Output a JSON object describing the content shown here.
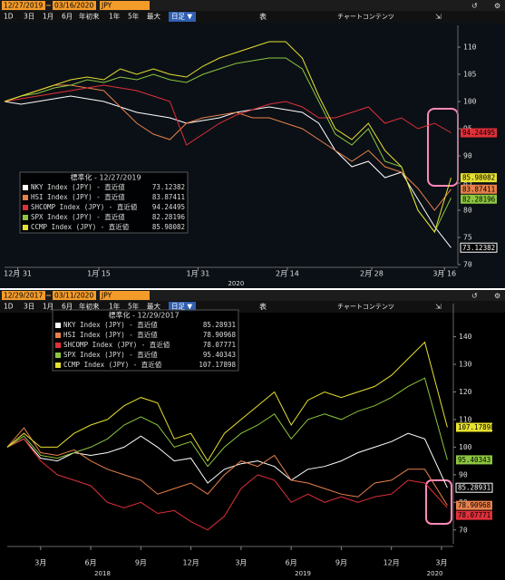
{
  "panels": [
    {
      "start": "12/27/2019",
      "end": "03/16/2020",
      "currency": "JPY"
    },
    {
      "start": "12/29/2017",
      "end": "03/11/2020",
      "currency": "JPY"
    }
  ],
  "buttons": [
    "1D",
    "3日",
    "1月",
    "6月",
    "年初来",
    "1年",
    "5年",
    "最大"
  ],
  "frequency": "日足 ▼",
  "table": "表",
  "content": "チャートコンテンツ",
  "chart_data": [
    {
      "type": "line",
      "legend_title": "標準化 - 12/27/2019",
      "ylim": [
        70,
        114
      ],
      "yticks": [
        70,
        75,
        80,
        85,
        90,
        95,
        100,
        105,
        110
      ],
      "xlim": [
        0,
        27.3
      ],
      "xticks": [
        {
          "value": 0.8,
          "label": "12月 31"
        },
        {
          "value": 5.7,
          "label": "1月 15"
        },
        {
          "value": 11.7,
          "label": "1月 31"
        },
        {
          "value": 17.1,
          "label": "2月 14"
        },
        {
          "value": 22.2,
          "label": "2月 28"
        },
        {
          "value": 26.6,
          "label": "3月 16"
        }
      ],
      "year_labels": [
        {
          "value": 14,
          "label": "2020"
        }
      ],
      "series": [
        {
          "name": "NKY Index (JPY) - 直近値",
          "color": "#ffffff",
          "values": [
            100,
            99.5,
            100,
            100.5,
            101,
            100.5,
            100,
            99,
            98,
            97.5,
            97,
            96,
            96.5,
            97,
            98,
            98.5,
            99,
            98.5,
            98,
            96,
            91,
            88,
            89,
            86,
            87,
            82,
            77,
            73.12382
          ]
        },
        {
          "name": "HSI Index (JPY) - 直近値",
          "color": "#e8804a",
          "values": [
            100,
            101,
            102,
            103,
            103,
            102.5,
            102,
            99,
            96,
            94,
            93,
            96,
            97,
            97.5,
            98,
            97,
            97,
            96,
            95,
            93,
            91,
            89,
            91,
            88,
            87,
            84,
            80,
            83.87411
          ]
        },
        {
          "name": "SHCOMP Index (JPY) - 直近値",
          "color": "#e0303a",
          "values": [
            100,
            100.5,
            101,
            101.5,
            102,
            102.5,
            103,
            102.5,
            102,
            101,
            100,
            92,
            94,
            96,
            97.5,
            98.5,
            99.5,
            100,
            99,
            97,
            97,
            98,
            99,
            96,
            97,
            95,
            96,
            94.24495
          ]
        },
        {
          "name": "SPX Index (JPY) - 直近値",
          "color": "#8cc63f",
          "values": [
            100,
            101,
            101.5,
            102.5,
            103,
            104,
            103.5,
            104.5,
            104,
            105,
            104,
            103.5,
            105,
            106,
            107,
            107.5,
            108,
            108,
            106,
            100,
            94,
            92,
            95,
            89,
            88,
            80,
            76,
            82.28196
          ]
        },
        {
          "name": "CCMP Index (JPY) - 直近値",
          "color": "#e6e030",
          "values": [
            100,
            101,
            102,
            103,
            104,
            104.5,
            104,
            106,
            105,
            106,
            105,
            104.5,
            106.5,
            108,
            109,
            110,
            111,
            111,
            108,
            101,
            95,
            93,
            96,
            91,
            88,
            80,
            76,
            85.98082
          ]
        }
      ]
    },
    {
      "type": "line",
      "legend_title": "標準化 - 12/29/2017",
      "ylim": [
        65,
        152
      ],
      "yticks": [
        70,
        80,
        90,
        100,
        110,
        120,
        130,
        140
      ],
      "xlim": [
        0,
        26.6
      ],
      "xticks": [
        {
          "value": 2,
          "label": "3月"
        },
        {
          "value": 5,
          "label": "6月"
        },
        {
          "value": 8,
          "label": "9月"
        },
        {
          "value": 11,
          "label": "12月"
        },
        {
          "value": 14,
          "label": "3月"
        },
        {
          "value": 17,
          "label": "6月"
        },
        {
          "value": 20,
          "label": "9月"
        },
        {
          "value": 23,
          "label": "12月"
        },
        {
          "value": 26,
          "label": "3月"
        }
      ],
      "year_labels": [
        {
          "value": 5.7,
          "label": "2018"
        },
        {
          "value": 17.7,
          "label": "2019"
        },
        {
          "value": 25.6,
          "label": "2020"
        }
      ],
      "x": [
        0,
        1,
        2,
        3,
        4,
        5,
        6,
        7,
        8,
        9,
        10,
        11,
        12,
        13,
        14,
        15,
        16,
        17,
        18,
        19,
        20,
        21,
        22,
        23,
        24,
        25,
        26.35
      ],
      "series": [
        {
          "name": "NKY Index (JPY) - 直近値",
          "color": "#ffffff",
          "values": [
            100,
            103,
            96,
            95,
            98,
            97,
            98,
            100,
            104,
            100,
            95,
            96,
            87,
            92,
            94,
            95,
            93,
            88,
            92,
            93,
            95,
            98,
            100,
            102,
            105,
            103,
            85.28931
          ]
        },
        {
          "name": "HSI Index (JPY) - 直近値",
          "color": "#e8804a",
          "values": [
            100,
            107,
            98,
            97,
            99,
            95,
            92,
            90,
            88,
            83,
            85,
            87,
            83,
            90,
            95,
            93,
            97,
            88,
            87,
            85,
            83,
            82,
            87,
            88,
            92,
            92,
            78.90968
          ]
        },
        {
          "name": "SHCOMP Index (JPY) - 直近値",
          "color": "#e0303a",
          "values": [
            100,
            103,
            95,
            90,
            88,
            86,
            80,
            78,
            80,
            76,
            77,
            73,
            70,
            75,
            85,
            90,
            88,
            80,
            83,
            80,
            82,
            80,
            82,
            83,
            88,
            87,
            78.07771
          ]
        },
        {
          "name": "SPX Index (JPY) - 直近値",
          "color": "#8cc63f",
          "values": [
            100,
            104,
            97,
            96,
            98,
            100,
            103,
            108,
            111,
            108,
            100,
            102,
            93,
            100,
            105,
            108,
            112,
            103,
            110,
            112,
            110,
            113,
            115,
            118,
            122,
            125,
            95.40343
          ]
        },
        {
          "name": "CCMP Index (JPY) - 直近値",
          "color": "#e6e030",
          "values": [
            100,
            105,
            100,
            100,
            105,
            108,
            110,
            115,
            118,
            116,
            103,
            105,
            95,
            105,
            110,
            115,
            120,
            108,
            117,
            120,
            118,
            120,
            122,
            126,
            132,
            138,
            107.17898
          ]
        }
      ]
    }
  ]
}
